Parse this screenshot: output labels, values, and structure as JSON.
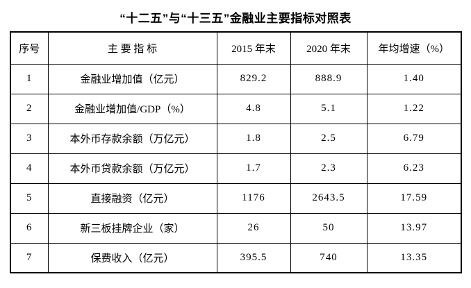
{
  "page": {
    "background": "#ffffff",
    "text_color": "#000000",
    "border_color": "#000000"
  },
  "title": "“十二五”与“十三五”金融业主要指标对照表",
  "table": {
    "headers": [
      "序号",
      "主 要 指 标",
      "2015 年末",
      "2020 年末",
      "年均增速（%）"
    ],
    "rows": [
      {
        "no": "1",
        "indicator": "金融业增加值（亿元）",
        "end2015": "829.2",
        "end2020": "888.9",
        "growth": "1.40"
      },
      {
        "no": "2",
        "indicator": "金融业增加值/GDP（%）",
        "end2015": "4.8",
        "end2020": "5.1",
        "growth": "1.22"
      },
      {
        "no": "3",
        "indicator": "本外币存款余额（万亿元）",
        "end2015": "1.8",
        "end2020": "2.5",
        "growth": "6.79"
      },
      {
        "no": "4",
        "indicator": "本外币贷款余额（万亿元）",
        "end2015": "1.7",
        "end2020": "2.3",
        "growth": "6.23"
      },
      {
        "no": "5",
        "indicator": "直接融资（亿元）",
        "end2015": "1176",
        "end2020": "2643.5",
        "growth": "17.59"
      },
      {
        "no": "6",
        "indicator": "新三板挂牌企业（家）",
        "end2015": "26",
        "end2020": "50",
        "growth": "13.97"
      },
      {
        "no": "7",
        "indicator": "保费收入（亿元）",
        "end2015": "395.5",
        "end2020": "740",
        "growth": "13.35"
      }
    ]
  },
  "chart_data": {
    "type": "table",
    "title": "“十二五”与“十三五”金融业主要指标对照表",
    "columns": [
      "序号",
      "主要指标",
      "2015年末",
      "2020年末",
      "年均增速（%）"
    ],
    "rows": [
      [
        1,
        "金融业增加值（亿元）",
        829.2,
        888.9,
        1.4
      ],
      [
        2,
        "金融业增加值/GDP（%）",
        4.8,
        5.1,
        1.22
      ],
      [
        3,
        "本外币存款余额（万亿元）",
        1.8,
        2.5,
        6.79
      ],
      [
        4,
        "本外币贷款余额（万亿元）",
        1.7,
        2.3,
        6.23
      ],
      [
        5,
        "直接融资（亿元）",
        1176,
        2643.5,
        17.59
      ],
      [
        6,
        "新三板挂牌企业（家）",
        26,
        50,
        13.97
      ],
      [
        7,
        "保费收入（亿元）",
        395.5,
        740,
        13.35
      ]
    ]
  }
}
